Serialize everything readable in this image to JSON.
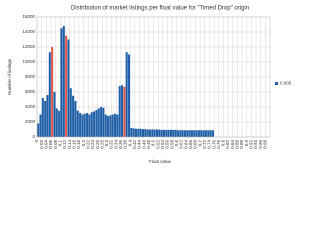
{
  "chart_data": {
    "type": "histogram",
    "title": "Distribution of market listings per float value for \"Timed Drop\" origin",
    "x_label": "Float value",
    "y_label": "Number of listings",
    "series_name": "0.005",
    "color": "#1f5fa8",
    "highlight_color": "#e0574a",
    "highlighted_bins": [
      6,
      12,
      37
    ],
    "bins": [
      0,
      0.01,
      0.02,
      0.03,
      0.04,
      0.05,
      0.06,
      0.07,
      0.08,
      0.09,
      0.1,
      0.11,
      0.12,
      0.13,
      0.14,
      0.15,
      0.16,
      0.17,
      0.18,
      0.19,
      0.2,
      0.21,
      0.22,
      0.23,
      0.24,
      0.25,
      0.26,
      0.27,
      0.28,
      0.29,
      0.3,
      0.31,
      0.32,
      0.33,
      0.34,
      0.35,
      0.36,
      0.37,
      0.38,
      0.39,
      0.4,
      0.41,
      0.42,
      0.43,
      0.44,
      0.45,
      0.46,
      0.47,
      0.48,
      0.49,
      0.5,
      0.51,
      0.52,
      0.53,
      0.54,
      0.55,
      0.56,
      0.57,
      0.58,
      0.59,
      0.6,
      0.61,
      0.62,
      0.63,
      0.64,
      0.65,
      0.66,
      0.67,
      0.68,
      0.69,
      0.7,
      0.71,
      0.72,
      0.73,
      0.74,
      0.75,
      0.76,
      0.77,
      0.78,
      0.79,
      0.8,
      0.81,
      0.82,
      0.83,
      0.84,
      0.85,
      0.86,
      0.87,
      0.88,
      0.89,
      0.9,
      0.91,
      0.92,
      0.93,
      0.94,
      0.95,
      0.96,
      0.97,
      0.98,
      0.99,
      1
    ],
    "counts": [
      1800,
      3000,
      5200,
      4800,
      5600,
      11300,
      12000,
      6000,
      3800,
      3500,
      14500,
      14800,
      13500,
      13000,
      6500,
      5500,
      4800,
      3500,
      3200,
      3000,
      3100,
      3200,
      3000,
      3300,
      3400,
      3600,
      3800,
      4000,
      3900,
      3000,
      2800,
      2900,
      3000,
      3100,
      3000,
      6800,
      6900,
      6700,
      11300,
      11000,
      1200,
      1150,
      1100,
      1100,
      1100,
      1050,
      1050,
      1000,
      1000,
      1000,
      1000,
      1000,
      1000,
      950,
      950,
      950,
      950,
      950,
      950,
      950,
      900,
      900,
      900,
      900,
      900,
      900,
      900,
      900,
      900,
      900,
      900,
      900,
      900,
      900,
      900,
      900,
      0,
      0,
      0,
      0,
      0,
      0,
      0,
      0,
      0,
      0,
      0,
      0,
      0,
      0,
      0,
      0,
      0,
      0,
      0,
      0,
      0,
      0,
      0,
      0
    ],
    "xlim": [
      0,
      1
    ],
    "ylim": [
      0,
      16000
    ],
    "xticks": [
      0,
      0.02,
      0.04,
      0.06,
      0.08,
      0.1,
      0.12,
      0.14,
      0.16,
      0.18,
      0.2,
      0.22,
      0.24,
      0.26,
      0.28,
      0.3,
      0.32,
      0.34,
      0.36,
      0.38,
      0.4,
      0.42,
      0.44,
      0.46,
      0.48,
      0.5,
      0.52,
      0.54,
      0.56,
      0.58,
      0.6,
      0.62,
      0.64,
      0.66,
      0.68,
      0.7,
      0.72,
      0.74,
      0.76,
      0.78,
      0.8,
      0.82,
      0.84,
      0.86,
      0.88,
      0.9,
      0.92,
      0.94,
      0.96,
      0.98
    ],
    "yticks": [
      0,
      2000,
      4000,
      6000,
      8000,
      10000,
      12000,
      14000,
      16000
    ],
    "grid": true
  }
}
